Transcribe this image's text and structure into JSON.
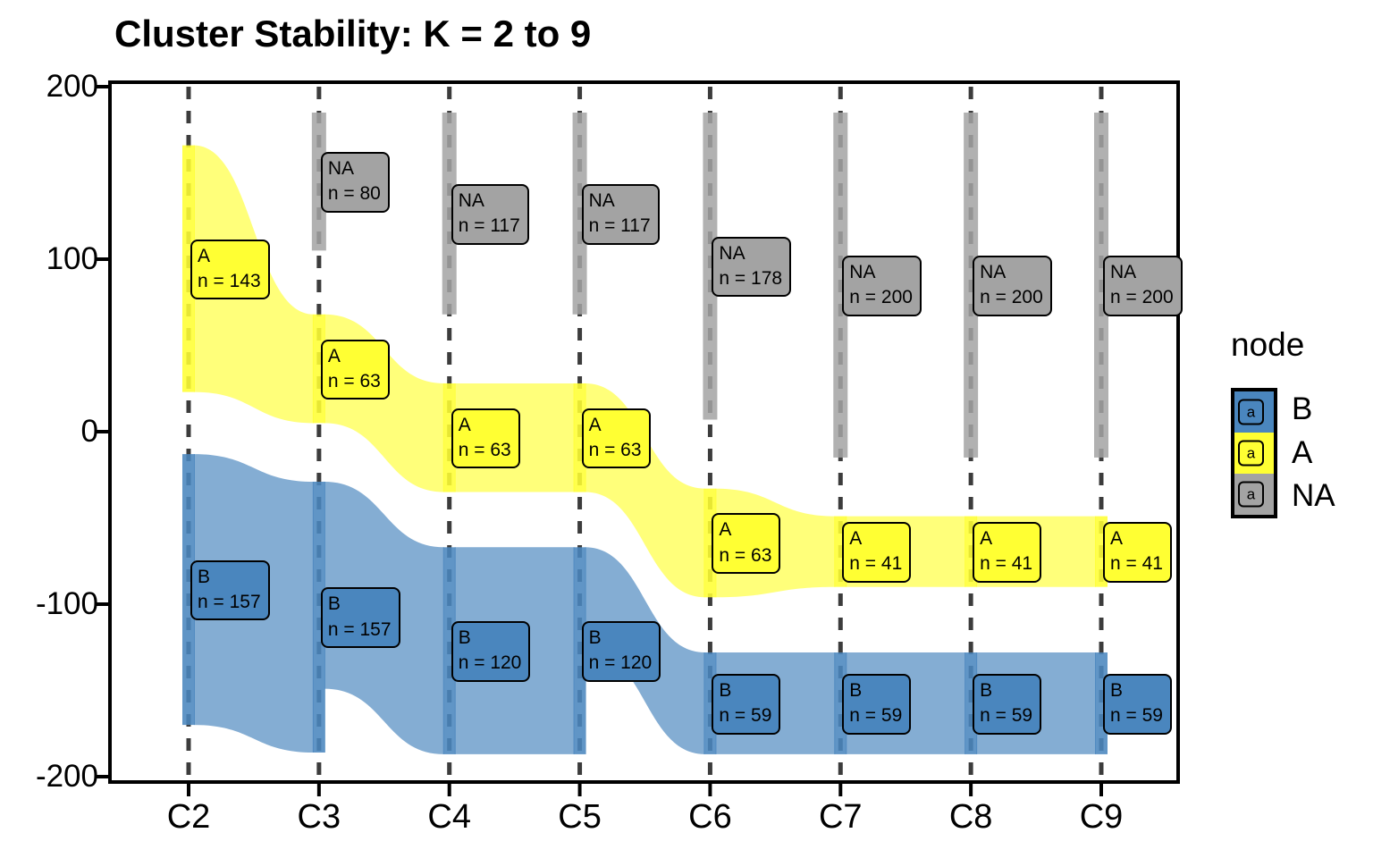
{
  "title": "Cluster Stability: K = 2 to 9",
  "legend": {
    "title": "node",
    "glyph": "a",
    "entries": [
      {
        "label": "B",
        "color": "#4A86BE"
      },
      {
        "label": "A",
        "color": "#FFFF33"
      },
      {
        "label": "NA",
        "color": "#A3A3A3"
      }
    ]
  },
  "chart_data": {
    "type": "alluvial",
    "title": "Cluster Stability: K = 2 to 9",
    "x_categories": [
      "C2",
      "C3",
      "C4",
      "C5",
      "C6",
      "C7",
      "C8",
      "C9"
    ],
    "y_ticks": [
      200,
      100,
      0,
      -100,
      -200
    ],
    "y_range": [
      -200,
      200
    ],
    "grid": "dashed-vertical-per-category",
    "legend_position": "right",
    "node_label_format": "n = {n}",
    "colors": {
      "A": "#FFFF33",
      "B": "#4A86BE",
      "NA": "#A3A3A3"
    },
    "columns": [
      {
        "label": "C2",
        "nodes": [
          {
            "node": "A",
            "n": 143,
            "span": [
              166,
              23
            ]
          },
          {
            "node": "B",
            "n": 157,
            "span": [
              -13,
              -170
            ]
          }
        ]
      },
      {
        "label": "C3",
        "nodes": [
          {
            "node": "NA",
            "n": 80,
            "span": [
              185,
              105
            ]
          },
          {
            "node": "A",
            "n": 63,
            "span": [
              68,
              5
            ]
          },
          {
            "node": "B",
            "n": 157,
            "span": [
              -29,
              -186
            ]
          }
        ]
      },
      {
        "label": "C4",
        "nodes": [
          {
            "node": "NA",
            "n": 117,
            "span": [
              185,
              68
            ]
          },
          {
            "node": "A",
            "n": 63,
            "span": [
              28,
              -35
            ]
          },
          {
            "node": "B",
            "n": 120,
            "span": [
              -67,
              -187
            ]
          }
        ]
      },
      {
        "label": "C5",
        "nodes": [
          {
            "node": "NA",
            "n": 117,
            "span": [
              185,
              68
            ]
          },
          {
            "node": "A",
            "n": 63,
            "span": [
              28,
              -35
            ]
          },
          {
            "node": "B",
            "n": 120,
            "span": [
              -67,
              -187
            ]
          }
        ]
      },
      {
        "label": "C6",
        "nodes": [
          {
            "node": "NA",
            "n": 178,
            "span": [
              185,
              7
            ]
          },
          {
            "node": "A",
            "n": 63,
            "span": [
              -33,
              -96
            ]
          },
          {
            "node": "B",
            "n": 59,
            "span": [
              -128,
              -187
            ]
          }
        ]
      },
      {
        "label": "C7",
        "nodes": [
          {
            "node": "NA",
            "n": 200,
            "span": [
              185,
              -15
            ]
          },
          {
            "node": "A",
            "n": 41,
            "span": [
              -49,
              -90
            ]
          },
          {
            "node": "B",
            "n": 59,
            "span": [
              -128,
              -187
            ]
          }
        ]
      },
      {
        "label": "C8",
        "nodes": [
          {
            "node": "NA",
            "n": 200,
            "span": [
              185,
              -15
            ]
          },
          {
            "node": "A",
            "n": 41,
            "span": [
              -49,
              -90
            ]
          },
          {
            "node": "B",
            "n": 59,
            "span": [
              -128,
              -187
            ]
          }
        ]
      },
      {
        "label": "C9",
        "nodes": [
          {
            "node": "NA",
            "n": 200,
            "span": [
              185,
              -15
            ]
          },
          {
            "node": "A",
            "n": 41,
            "span": [
              -49,
              -90
            ]
          },
          {
            "node": "B",
            "n": 59,
            "span": [
              -128,
              -187
            ]
          }
        ]
      }
    ],
    "flows": [
      {
        "node": "A",
        "from": 0,
        "to": 1,
        "src": [
          166,
          23
        ],
        "dst": [
          68,
          5
        ]
      },
      {
        "node": "A",
        "from": 1,
        "to": 2,
        "src": [
          68,
          5
        ],
        "dst": [
          28,
          -35
        ]
      },
      {
        "node": "A",
        "from": 2,
        "to": 3,
        "src": [
          28,
          -35
        ],
        "dst": [
          28,
          -35
        ]
      },
      {
        "node": "A",
        "from": 3,
        "to": 4,
        "src": [
          28,
          -35
        ],
        "dst": [
          -33,
          -96
        ]
      },
      {
        "node": "A",
        "from": 4,
        "to": 5,
        "src": [
          -33,
          -96
        ],
        "dst": [
          -49,
          -90
        ]
      },
      {
        "node": "A",
        "from": 5,
        "to": 6,
        "src": [
          -49,
          -90
        ],
        "dst": [
          -49,
          -90
        ]
      },
      {
        "node": "A",
        "from": 6,
        "to": 7,
        "src": [
          -49,
          -90
        ],
        "dst": [
          -49,
          -90
        ]
      },
      {
        "node": "B",
        "from": 0,
        "to": 1,
        "src": [
          -13,
          -170
        ],
        "dst": [
          -29,
          -186
        ]
      },
      {
        "node": "B",
        "from": 1,
        "to": 2,
        "src": [
          -29,
          -149
        ],
        "dst": [
          -67,
          -187
        ]
      },
      {
        "node": "B",
        "from": 2,
        "to": 3,
        "src": [
          -67,
          -187
        ],
        "dst": [
          -67,
          -187
        ]
      },
      {
        "node": "B",
        "from": 3,
        "to": 4,
        "src": [
          -67,
          -126
        ],
        "dst": [
          -128,
          -187
        ]
      },
      {
        "node": "B",
        "from": 4,
        "to": 5,
        "src": [
          -128,
          -187
        ],
        "dst": [
          -128,
          -187
        ]
      },
      {
        "node": "B",
        "from": 5,
        "to": 6,
        "src": [
          -128,
          -187
        ],
        "dst": [
          -128,
          -187
        ]
      },
      {
        "node": "B",
        "from": 6,
        "to": 7,
        "src": [
          -128,
          -187
        ],
        "dst": [
          -128,
          -187
        ]
      }
    ]
  }
}
